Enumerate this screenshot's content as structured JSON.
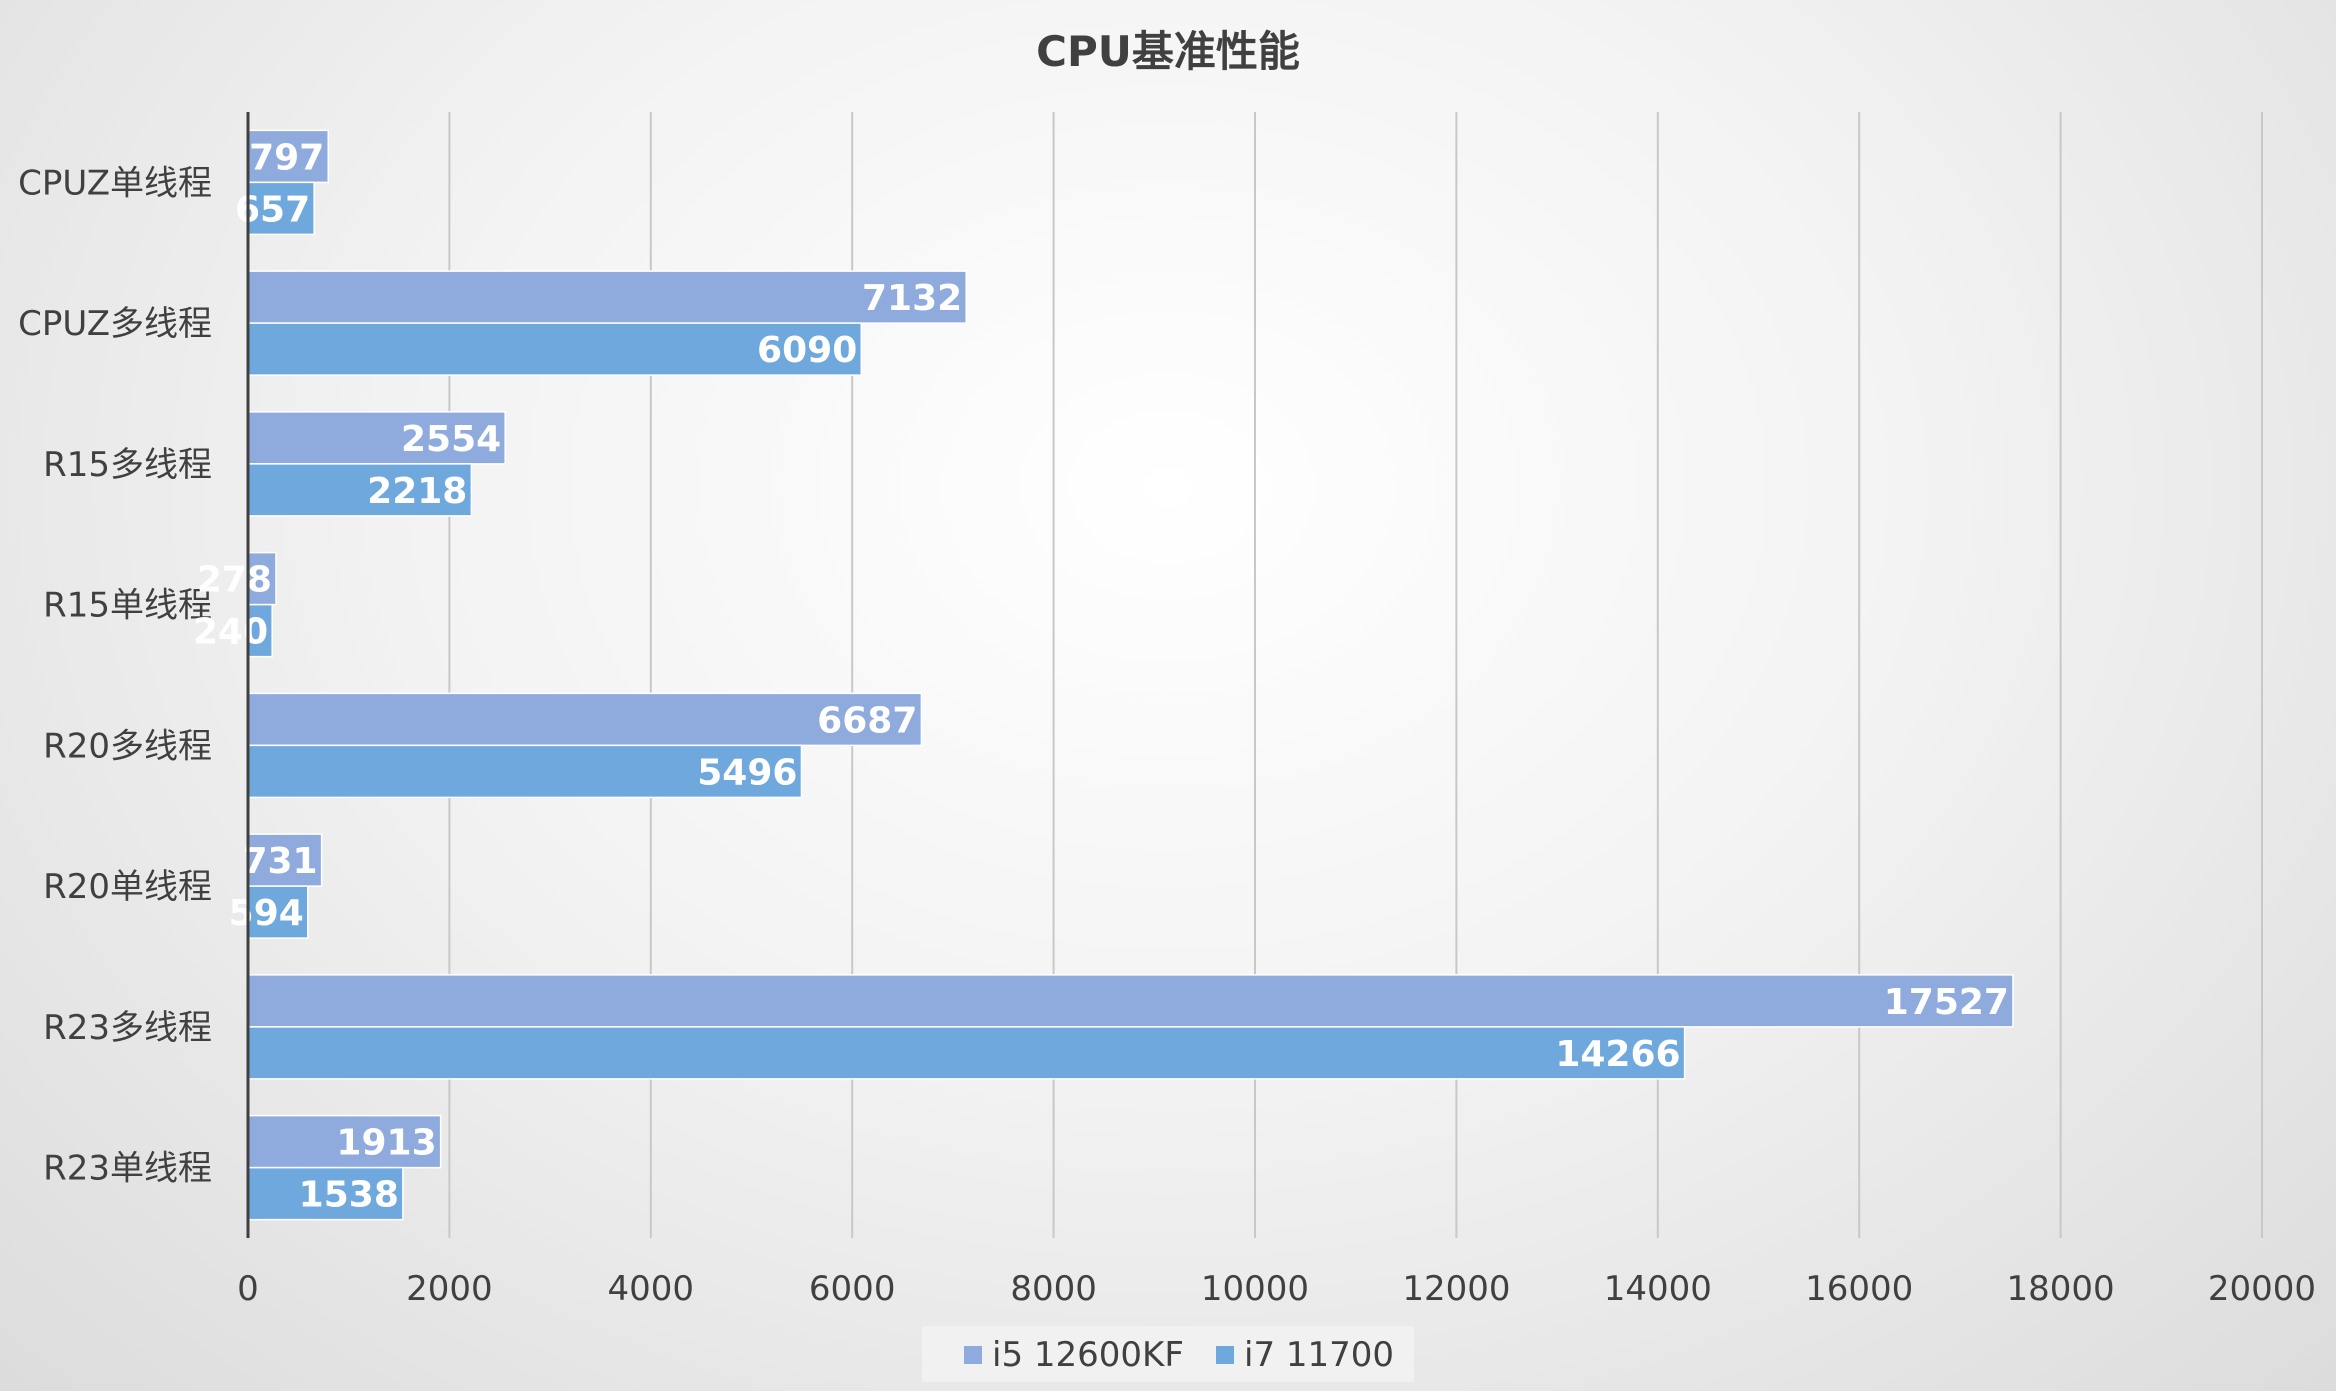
{
  "chart_data": {
    "type": "bar",
    "orientation": "horizontal",
    "title": "CPU基准性能",
    "categories": [
      "CPUZ单线程",
      "CPUZ多线程",
      "R15多线程",
      "R15单线程",
      "R20多线程",
      "R20单线程",
      "R23多线程",
      "R23单线程"
    ],
    "series": [
      {
        "name": "i5 12600KF",
        "color": "#8faadc",
        "values": [
          797,
          7132,
          2554,
          278,
          6687,
          731,
          17527,
          1913
        ]
      },
      {
        "name": "i7 11700",
        "color": "#6fa8dc",
        "values": [
          657,
          6090,
          2218,
          240,
          5496,
          594,
          14266,
          1538
        ]
      }
    ],
    "xlim": [
      0,
      20000
    ],
    "ticks": [
      0,
      2000,
      4000,
      6000,
      8000,
      10000,
      12000,
      14000,
      16000,
      18000,
      20000
    ],
    "grid": true,
    "legend_position": "bottom",
    "data_labels": true
  }
}
